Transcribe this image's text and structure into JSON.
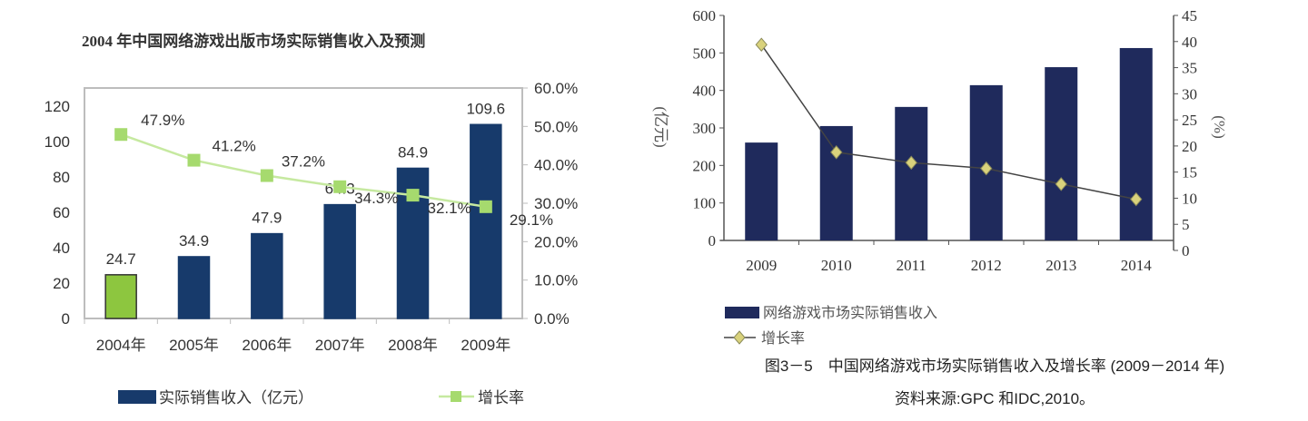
{
  "chart_data": [
    {
      "type": "bar",
      "title": "2004 年中国网络游戏出版市场实际销售收入及预测",
      "categories": [
        "2004年",
        "2005年",
        "2006年",
        "2007年",
        "2008年",
        "2009年"
      ],
      "series": [
        {
          "name": "实际销售收入（亿元）",
          "type": "bar",
          "axis": "left",
          "values": [
            24.7,
            34.9,
            47.9,
            64.3,
            84.9,
            109.6
          ],
          "labels": [
            "24.7",
            "34.9",
            "47.9",
            "64.3",
            "84.9",
            "109.6"
          ]
        },
        {
          "name": "增长率",
          "type": "line",
          "axis": "right",
          "values": [
            47.9,
            41.2,
            37.2,
            34.3,
            32.1,
            29.1
          ],
          "labels": [
            "47.9%",
            "41.2%",
            "37.2%",
            "34.3%",
            "32.1%",
            "29.1%"
          ]
        }
      ],
      "ylim": [
        0,
        130
      ],
      "yticks": [
        "0",
        "20",
        "40",
        "60",
        "80",
        "100",
        "120"
      ],
      "y2lim": [
        0,
        60
      ],
      "y2ticks": [
        "0.0%",
        "10.0%",
        "20.0%",
        "30.0%",
        "40.0%",
        "50.0%",
        "60.0%"
      ],
      "legend": "bottom",
      "colors": {
        "bar": "#173a6b",
        "bar_highlight": "#8dc63f",
        "line": "#c6e9a0",
        "marker": "#a6da6e"
      }
    },
    {
      "type": "bar",
      "caption": "图3－5　中国网络游戏市场实际销售收入及增长率 (2009－2014 年)",
      "source": "资料来源:GPC 和IDC,2010。",
      "categories": [
        "2009",
        "2010",
        "2011",
        "2012",
        "2013",
        "2014"
      ],
      "series": [
        {
          "name": "网络游戏市场实际销售收入",
          "type": "bar",
          "axis": "left",
          "values": [
            261,
            305,
            356,
            414,
            462,
            513
          ]
        },
        {
          "name": "增长率",
          "type": "line",
          "axis": "right",
          "values": [
            39.4,
            18.8,
            16.8,
            15.7,
            12.7,
            9.8
          ]
        }
      ],
      "ylabel": "(亿元)",
      "y2label": "(%)",
      "ylim": [
        0,
        600
      ],
      "yticks": [
        "0",
        "100",
        "200",
        "300",
        "400",
        "500",
        "600"
      ],
      "y2lim": [
        0,
        45
      ],
      "y2ticks": [
        "0",
        "5",
        "10",
        "15",
        "20",
        "25",
        "30",
        "35",
        "40",
        "45"
      ],
      "legend": "bottom-left",
      "colors": {
        "bar": "#1f2a5c",
        "line": "#444444",
        "marker": "#d9d27c"
      }
    }
  ]
}
